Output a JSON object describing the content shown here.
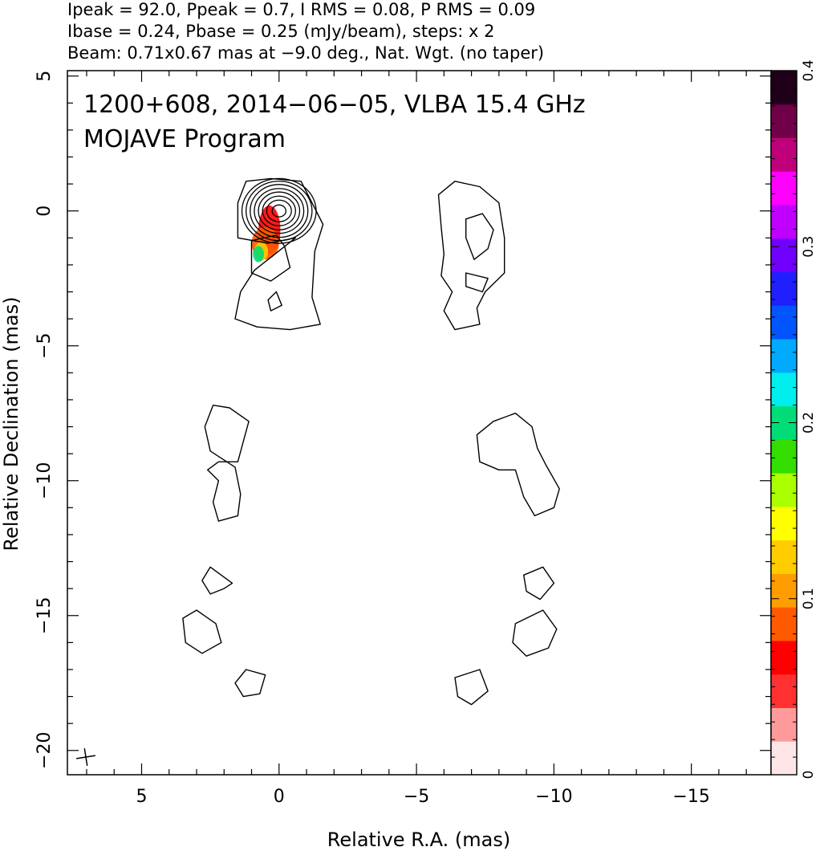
{
  "header": {
    "line1": "Ipeak = 92.0, Ppeak = 0.7, I RMS = 0.08, P RMS = 0.09",
    "line2": "Ibase = 0.24, Pbase = 0.25 (mJy/beam), steps: x 2",
    "line3": "Beam: 0.71x0.67 mas at −9.0 deg., Nat. Wgt. (no taper)"
  },
  "chart_data": {
    "type": "contour",
    "annotation_line1": "1200+608, 2014−06−05, VLBA 15.4 GHz",
    "annotation_line2": "MOJAVE Program",
    "xlabel": "Relative R.A. (mas)",
    "ylabel": "Relative Declination (mas)",
    "xlim": [
      7.7,
      -17.9
    ],
    "ylim": [
      -20.9,
      5.2
    ],
    "x_ticks": [
      {
        "value": 5,
        "label": "5"
      },
      {
        "value": 0,
        "label": "0"
      },
      {
        "value": -5,
        "label": "−5"
      },
      {
        "value": -10,
        "label": "−10"
      },
      {
        "value": -15,
        "label": "−15"
      }
    ],
    "y_ticks": [
      {
        "value": 5,
        "label": "5"
      },
      {
        "value": 0,
        "label": "0"
      },
      {
        "value": -5,
        "label": "−5"
      },
      {
        "value": -10,
        "label": "−10"
      },
      {
        "value": -15,
        "label": "−15"
      },
      {
        "value": -20,
        "label": "−20"
      }
    ],
    "colorbar": {
      "min": 0,
      "max": 0.4,
      "ticks": [
        {
          "value": 0,
          "label": "0"
        },
        {
          "value": 0.1,
          "label": "0.1"
        },
        {
          "value": 0.2,
          "label": "0.2"
        },
        {
          "value": 0.3,
          "label": "0.3"
        },
        {
          "value": 0.4,
          "label": "0.4"
        }
      ],
      "colors": [
        "#ffe6e6",
        "#ff9a9a",
        "#ff3030",
        "#ff0000",
        "#ff5a00",
        "#ff9c00",
        "#ffcc00",
        "#ffff00",
        "#aaff00",
        "#33dd00",
        "#00dd77",
        "#00eeee",
        "#00aaff",
        "#0055ff",
        "#2020ff",
        "#7000ff",
        "#c000ff",
        "#ff00ff",
        "#c0007a",
        "#700048",
        "#200018"
      ]
    },
    "core_contours": {
      "center": [
        0.0,
        0.0
      ],
      "radii": [
        [
          0.25,
          0.22
        ],
        [
          0.45,
          0.4
        ],
        [
          0.6,
          0.55
        ],
        [
          0.75,
          0.7
        ],
        [
          0.9,
          0.83
        ],
        [
          1.05,
          0.98
        ],
        [
          1.2,
          1.1
        ],
        [
          1.35,
          1.2
        ]
      ]
    },
    "polarization_patches": [
      {
        "x": 0.35,
        "y": -0.7,
        "rx": 0.4,
        "ry": 0.9,
        "level": 0.07
      },
      {
        "x": 0.5,
        "y": -1.2,
        "rx": 0.5,
        "ry": 0.6,
        "level": 0.08
      },
      {
        "x": 0.65,
        "y": -1.5,
        "rx": 0.25,
        "ry": 0.35,
        "level": 0.12
      },
      {
        "x": 0.75,
        "y": -1.6,
        "rx": 0.2,
        "ry": 0.3,
        "level": 0.2
      }
    ],
    "contours": [
      [
        [
          -0.6,
          -1.0
        ],
        [
          0.4,
          -1.2
        ],
        [
          1.5,
          -1.0
        ],
        [
          1.5,
          0.3
        ],
        [
          1.2,
          1.1
        ],
        [
          0.3,
          1.2
        ],
        [
          -0.8,
          1.1
        ],
        [
          -1.2,
          0.3
        ],
        [
          -1.6,
          -0.5
        ],
        [
          -1.3,
          -1.5
        ],
        [
          -1.2,
          -3.2
        ],
        [
          -1.5,
          -4.2
        ],
        [
          -0.4,
          -4.4
        ],
        [
          0.8,
          -4.3
        ],
        [
          1.6,
          -4.0
        ],
        [
          1.4,
          -3.0
        ],
        [
          0.9,
          -2.2
        ]
      ],
      [
        [
          0.1,
          -0.9
        ],
        [
          1.0,
          -1.1
        ],
        [
          1.0,
          -2.3
        ],
        [
          0.3,
          -2.6
        ],
        [
          -0.4,
          -2.1
        ],
        [
          -0.2,
          -1.3
        ]
      ],
      [
        [
          0.1,
          -3.0
        ],
        [
          0.4,
          -3.3
        ],
        [
          0.3,
          -3.7
        ],
        [
          -0.1,
          -3.5
        ]
      ],
      [
        [
          -5.8,
          0.6
        ],
        [
          -6.4,
          1.1
        ],
        [
          -7.3,
          0.9
        ],
        [
          -8.0,
          0.3
        ],
        [
          -8.2,
          -1.0
        ],
        [
          -8.2,
          -2.3
        ],
        [
          -7.5,
          -3.0
        ],
        [
          -7.2,
          -3.6
        ],
        [
          -7.3,
          -4.2
        ],
        [
          -6.4,
          -4.4
        ],
        [
          -6.0,
          -3.7
        ],
        [
          -6.3,
          -3.0
        ],
        [
          -5.9,
          -2.4
        ],
        [
          -6.0,
          -1.6
        ],
        [
          -5.9,
          -0.6
        ]
      ],
      [
        [
          -6.8,
          -0.3
        ],
        [
          -7.4,
          -0.1
        ],
        [
          -7.8,
          -0.7
        ],
        [
          -7.6,
          -1.4
        ],
        [
          -7.1,
          -1.8
        ],
        [
          -6.8,
          -1.0
        ]
      ],
      [
        [
          -6.8,
          -2.3
        ],
        [
          -7.6,
          -2.5
        ],
        [
          -7.4,
          -3.0
        ],
        [
          -6.8,
          -2.8
        ]
      ],
      [
        [
          1.1,
          -7.8
        ],
        [
          1.8,
          -7.3
        ],
        [
          2.4,
          -7.2
        ],
        [
          2.7,
          -8.0
        ],
        [
          2.5,
          -8.9
        ],
        [
          1.6,
          -9.5
        ],
        [
          1.4,
          -10.5
        ],
        [
          1.5,
          -11.3
        ],
        [
          2.2,
          -11.5
        ],
        [
          2.4,
          -10.8
        ],
        [
          2.2,
          -10.0
        ],
        [
          2.6,
          -9.6
        ],
        [
          2.2,
          -9.3
        ],
        [
          1.5,
          -9.3
        ]
      ],
      [
        [
          -7.2,
          -8.3
        ],
        [
          -7.8,
          -7.8
        ],
        [
          -8.6,
          -7.5
        ],
        [
          -9.2,
          -8.0
        ],
        [
          -9.4,
          -8.8
        ],
        [
          -9.7,
          -9.4
        ],
        [
          -10.2,
          -10.3
        ],
        [
          -10.0,
          -11.0
        ],
        [
          -9.3,
          -11.3
        ],
        [
          -8.9,
          -10.6
        ],
        [
          -8.6,
          -9.6
        ],
        [
          -8.0,
          -9.6
        ],
        [
          -7.3,
          -9.3
        ]
      ],
      [
        [
          2.3,
          -15.3
        ],
        [
          3.0,
          -14.8
        ],
        [
          3.5,
          -15.1
        ],
        [
          3.4,
          -16.0
        ],
        [
          2.8,
          -16.4
        ],
        [
          2.1,
          -16.0
        ]
      ],
      [
        [
          1.7,
          -13.8
        ],
        [
          2.5,
          -13.2
        ],
        [
          2.8,
          -13.7
        ],
        [
          2.5,
          -14.2
        ],
        [
          2.0,
          -14.0
        ]
      ],
      [
        [
          -8.6,
          -15.3
        ],
        [
          -9.6,
          -14.8
        ],
        [
          -10.1,
          -15.5
        ],
        [
          -9.8,
          -16.2
        ],
        [
          -9.0,
          -16.5
        ],
        [
          -8.5,
          -16.0
        ]
      ],
      [
        [
          -8.9,
          -13.5
        ],
        [
          -9.6,
          -13.2
        ],
        [
          -10.0,
          -13.8
        ],
        [
          -9.5,
          -14.4
        ],
        [
          -9.0,
          -14.1
        ]
      ],
      [
        [
          0.5,
          -17.2
        ],
        [
          1.2,
          -17.0
        ],
        [
          1.6,
          -17.5
        ],
        [
          1.3,
          -18.0
        ],
        [
          0.7,
          -17.9
        ]
      ],
      [
        [
          -6.4,
          -17.3
        ],
        [
          -7.3,
          -17.0
        ],
        [
          -7.6,
          -17.8
        ],
        [
          -7.0,
          -18.3
        ],
        [
          -6.5,
          -18.0
        ]
      ]
    ]
  }
}
